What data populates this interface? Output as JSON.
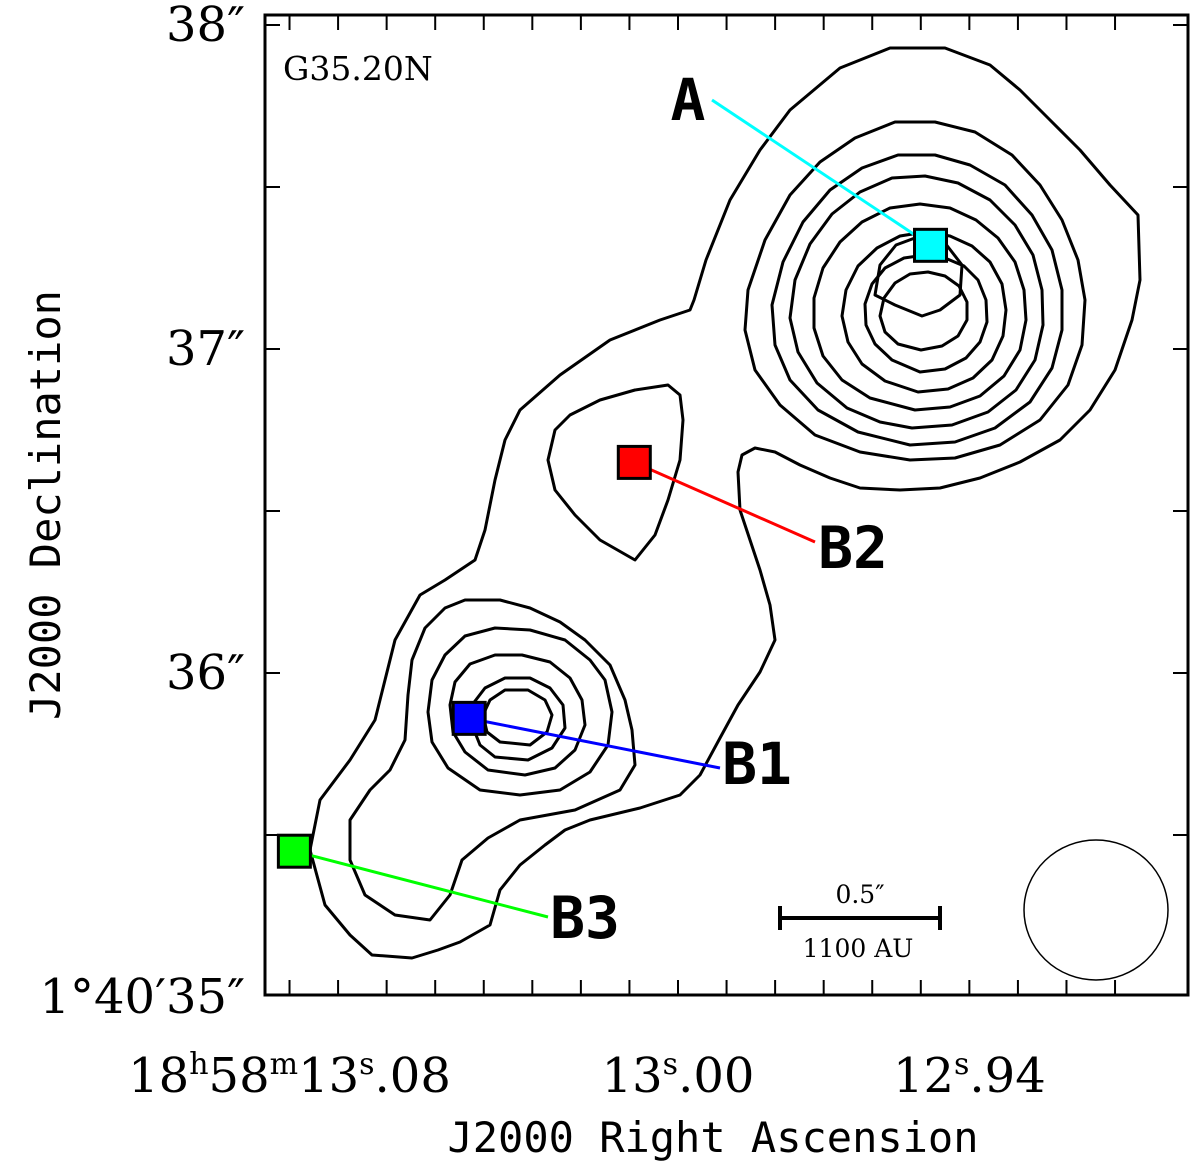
{
  "chart_data": {
    "type": "contour",
    "field_label": "G35.20N",
    "xlabel": "J2000 Right Ascension",
    "ylabel": "J2000 Declination",
    "x_ticks": [
      {
        "value": 13.08,
        "label": "18h58m13s.08"
      },
      {
        "value": 13.0,
        "label": "13s.00"
      },
      {
        "value": 12.94,
        "label": "12s.94"
      }
    ],
    "y_ticks": [
      {
        "value": 35,
        "label": "1°40′35″"
      },
      {
        "value": 36,
        "label": "36″"
      },
      {
        "value": 37,
        "label": "37″"
      },
      {
        "value": 38,
        "label": "38″"
      }
    ],
    "sources": [
      {
        "name": "A",
        "ra": 12.948,
        "dec": 37.32,
        "color": "#00ffff"
      },
      {
        "name": "B2",
        "ra": 13.009,
        "dec": 36.65,
        "color": "#ff0000"
      },
      {
        "name": "B1",
        "ra": 13.043,
        "dec": 35.86,
        "color": "#0000ff"
      },
      {
        "name": "B3",
        "ra": 13.079,
        "dec": 35.45,
        "color": "#00ff00"
      }
    ],
    "scale_bar": {
      "angular": "0.5″",
      "linear": "1100  AU"
    },
    "beam": "ellipse"
  }
}
